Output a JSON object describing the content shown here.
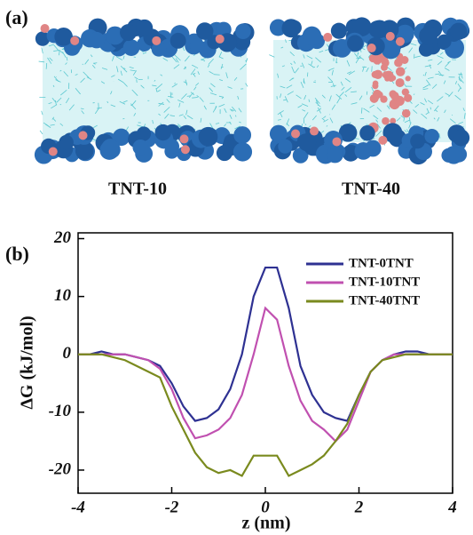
{
  "panel_a": {
    "label": "(a)",
    "captions": [
      "TNT-10",
      "TNT-40"
    ]
  },
  "panel_b": {
    "label": "(b)"
  },
  "chart_data": {
    "type": "line",
    "xlabel": "z (nm)",
    "ylabel": "ΔG (kJ/mol)",
    "x": [
      -4,
      -3.75,
      -3.5,
      -3.25,
      -3,
      -2.75,
      -2.5,
      -2.25,
      -2,
      -1.75,
      -1.5,
      -1.25,
      -1,
      -0.75,
      -0.5,
      -0.25,
      0,
      0.25,
      0.5,
      0.75,
      1,
      1.25,
      1.5,
      1.75,
      2,
      2.25,
      2.5,
      2.75,
      3,
      3.25,
      3.5,
      3.75,
      4
    ],
    "series": [
      {
        "name": "TNT-0TNT",
        "color": "#2e3192",
        "values": [
          0,
          0,
          0.5,
          0,
          0,
          -0.5,
          -1,
          -2,
          -5,
          -9,
          -11.5,
          -11,
          -9.5,
          -6,
          0,
          10,
          15,
          15,
          8,
          -2,
          -7,
          -10,
          -11,
          -11.5,
          -7,
          -3,
          -1,
          0,
          0.5,
          0.5,
          0,
          0,
          0
        ]
      },
      {
        "name": "TNT-10TNT",
        "color": "#c050b0",
        "values": [
          0,
          0,
          0,
          0,
          0,
          -0.5,
          -1,
          -2.5,
          -6,
          -11,
          -14.5,
          -14,
          -13,
          -11,
          -7,
          0,
          8,
          6,
          -2,
          -8,
          -11.5,
          -13,
          -15,
          -13,
          -8,
          -3,
          -1,
          0,
          0,
          0,
          0,
          0,
          0
        ]
      },
      {
        "name": "TNT-40TNT",
        "color": "#7a8a1e",
        "values": [
          0,
          0,
          0,
          -0.5,
          -1,
          -2,
          -3,
          -4,
          -9,
          -13,
          -17,
          -19.5,
          -20.5,
          -20,
          -21,
          -17.5,
          -17.5,
          -17.5,
          -21,
          -20,
          -19,
          -17.5,
          -15,
          -12,
          -7,
          -3,
          -1,
          -0.5,
          0,
          0,
          0,
          0,
          0
        ]
      }
    ],
    "xlim": [
      -4,
      4
    ],
    "ylim": [
      -24,
      21
    ],
    "xticks": [
      -4,
      -2,
      0,
      2,
      4
    ],
    "yticks": [
      -20,
      -10,
      0,
      10,
      20
    ],
    "legend": "upper right"
  }
}
